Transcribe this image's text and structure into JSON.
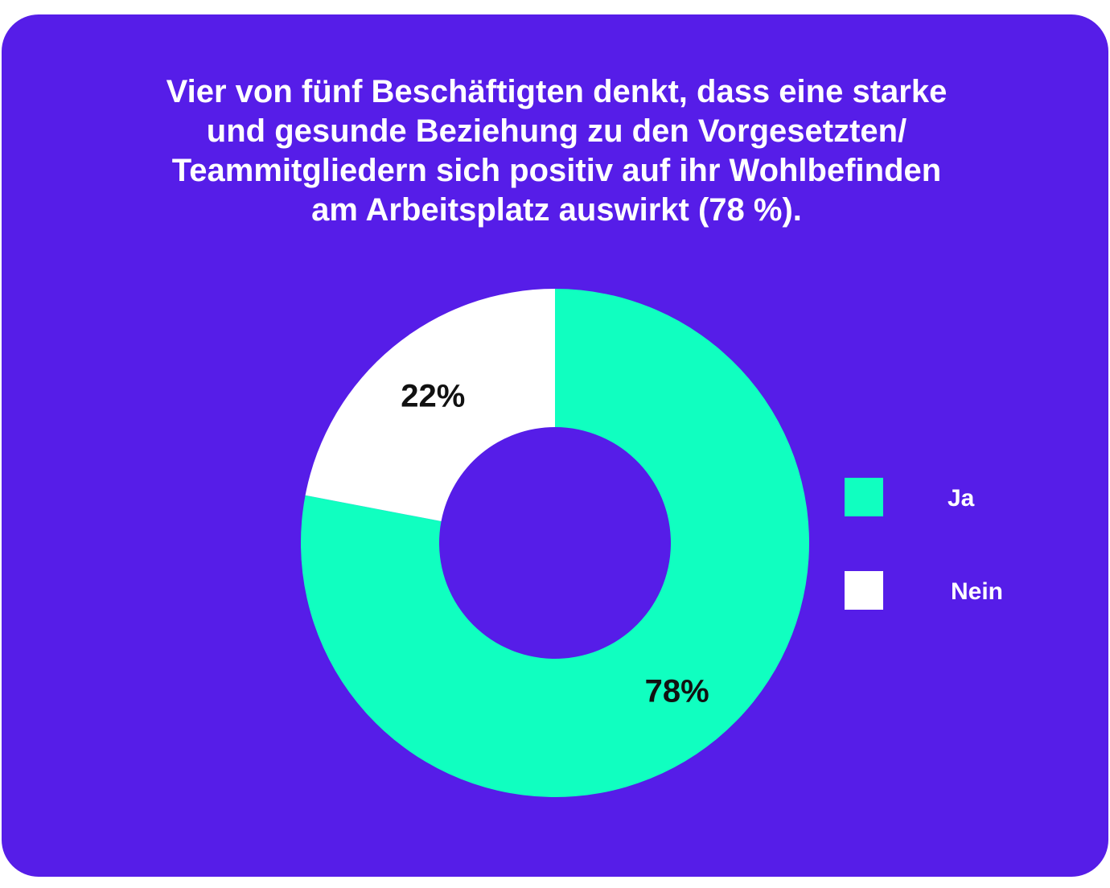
{
  "colors": {
    "background": "#561de8",
    "ja": "#10ffc0",
    "nein": "#ffffff",
    "title": "#ffffff",
    "slice_label": "#111111"
  },
  "chart_data": {
    "type": "pie",
    "variant": "donut",
    "title": "Vier von fünf Beschäftigten denkt, dass eine starke\nund gesunde Beziehung zu den Vorgesetzten/\nTeammitgliedern sich positiv auf ihr Wohlbefinden\nam Arbeitsplatz auswirkt (78 %).",
    "categories": [
      "Ja",
      "Nein"
    ],
    "values": [
      78,
      22
    ],
    "data_labels": [
      "78%",
      "22%"
    ],
    "colors": [
      "#10ffc0",
      "#ffffff"
    ],
    "start": "12 o'clock",
    "direction": "clockwise",
    "legend_position": "right"
  }
}
